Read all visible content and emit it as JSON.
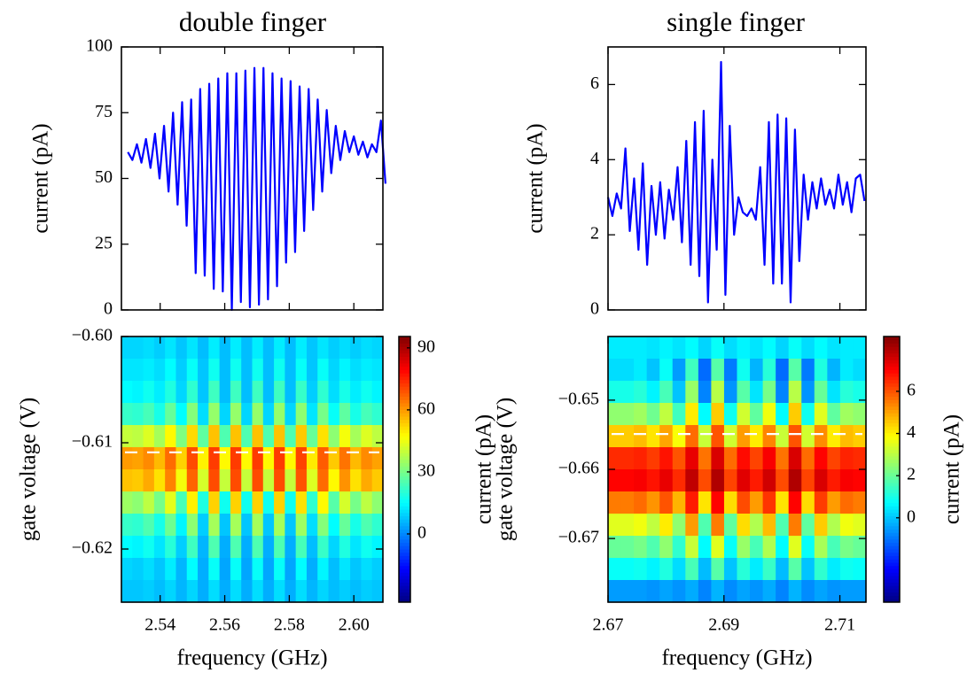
{
  "chart_data": [
    {
      "type": "line",
      "title": "double finger",
      "y_label": "current (pA)",
      "color": "#0000ff",
      "xlim": [
        2.528,
        2.609
      ],
      "ylim": [
        0,
        100
      ],
      "yticks": [
        0,
        25,
        50,
        75,
        100
      ],
      "x": [
        2.53,
        2.5314,
        2.5328,
        2.5342,
        2.5356,
        2.537,
        2.5384,
        2.5398,
        2.5412,
        2.5426,
        2.544,
        2.5454,
        2.5468,
        2.5482,
        2.5496,
        2.551,
        2.5524,
        2.5538,
        2.5552,
        2.5566,
        2.558,
        2.5594,
        2.5608,
        2.5622,
        2.5636,
        2.565,
        2.5664,
        2.5678,
        2.5692,
        2.5706,
        2.572,
        2.5734,
        2.5748,
        2.5762,
        2.5776,
        2.579,
        2.5804,
        2.5818,
        2.5832,
        2.5846,
        2.586,
        2.5874,
        2.5888,
        2.5902,
        2.5916,
        2.593,
        2.5944,
        2.5958,
        2.5972,
        2.5986,
        2.6,
        2.6014,
        2.6028,
        2.6042,
        2.6056,
        2.607,
        2.6084,
        2.6098
      ],
      "values": [
        60,
        57,
        63,
        56,
        65,
        54,
        67,
        50,
        70,
        45,
        75,
        40,
        79,
        32,
        80,
        14,
        84,
        13,
        86,
        8,
        88,
        7,
        90,
        0,
        90,
        3,
        91,
        1,
        92,
        2,
        92,
        4,
        90,
        9,
        88,
        18,
        87,
        22,
        85,
        30,
        84,
        38,
        80,
        45,
        76,
        52,
        70,
        57,
        68,
        60,
        66,
        59,
        64,
        58,
        63,
        60,
        72,
        48
      ]
    },
    {
      "type": "heatmap",
      "x_label": "frequency (GHz)",
      "y_label": "gate voltage (V)",
      "colormap": "jet",
      "xlim": [
        2.528,
        2.609
      ],
      "xticks": [
        2.54,
        2.56,
        2.58,
        {
          "value": 2.6,
          "label": "2.60"
        }
      ],
      "ylim": [
        -0.625,
        -0.6
      ],
      "yticks": [
        {
          "value": -0.6,
          "label": "−0.60"
        },
        {
          "value": -0.61,
          "label": "−0.61"
        },
        {
          "value": -0.62,
          "label": "−0.62"
        }
      ],
      "colorbar": {
        "label": "current (pA)",
        "lim": [
          -33,
          95.5
        ],
        "ticks": [
          0,
          30,
          60,
          90
        ]
      },
      "hline": -0.6109,
      "hline_color": "#ffffff",
      "z": [
        [
          10,
          10,
          11,
          9,
          12,
          8,
          12,
          7,
          13,
          7,
          13,
          7,
          13,
          7,
          13,
          7,
          13,
          8,
          12,
          9,
          11,
          9,
          11,
          10
        ],
        [
          12,
          12,
          13,
          11,
          15,
          9,
          16,
          8,
          17,
          7,
          17,
          7,
          17,
          7,
          17,
          7,
          16,
          8,
          16,
          10,
          14,
          11,
          13,
          12
        ],
        [
          15,
          14,
          17,
          13,
          19,
          10,
          21,
          8,
          23,
          7,
          23,
          7,
          23,
          7,
          23,
          7,
          22,
          9,
          21,
          11,
          18,
          13,
          17,
          14
        ],
        [
          22,
          21,
          24,
          18,
          28,
          15,
          32,
          11,
          34,
          10,
          34,
          10,
          34,
          10,
          34,
          10,
          33,
          12,
          30,
          16,
          27,
          18,
          24,
          21
        ],
        [
          40,
          39,
          43,
          36,
          48,
          31,
          52,
          27,
          55,
          25,
          55,
          25,
          55,
          25,
          55,
          25,
          54,
          28,
          51,
          33,
          46,
          36,
          43,
          39
        ],
        [
          60,
          59,
          62,
          56,
          66,
          53,
          70,
          49,
          72,
          48,
          72,
          48,
          72,
          48,
          72,
          48,
          71,
          50,
          68,
          54,
          65,
          56,
          62,
          59
        ],
        [
          55,
          54,
          58,
          51,
          63,
          46,
          67,
          42,
          70,
          40,
          70,
          40,
          70,
          40,
          70,
          40,
          69,
          43,
          66,
          48,
          61,
          51,
          58,
          54
        ],
        [
          35,
          33,
          39,
          30,
          44,
          24,
          49,
          19,
          53,
          17,
          53,
          17,
          53,
          17,
          53,
          17,
          51,
          21,
          48,
          26,
          42,
          30,
          39,
          33
        ],
        [
          22,
          21,
          25,
          18,
          29,
          14,
          33,
          9,
          36,
          8,
          36,
          8,
          36,
          8,
          36,
          8,
          35,
          11,
          32,
          15,
          28,
          18,
          25,
          21
        ],
        [
          15,
          14,
          17,
          12,
          20,
          9,
          23,
          6,
          25,
          5,
          25,
          5,
          25,
          5,
          25,
          5,
          24,
          7,
          22,
          10,
          19,
          12,
          17,
          14
        ],
        [
          10,
          9,
          11,
          8,
          13,
          6,
          15,
          5,
          16,
          4,
          16,
          4,
          16,
          4,
          16,
          4,
          15,
          5,
          14,
          7,
          12,
          8,
          11,
          9
        ],
        [
          8,
          8,
          9,
          7,
          10,
          6,
          10,
          5,
          11,
          5,
          11,
          5,
          11,
          5,
          11,
          5,
          11,
          6,
          10,
          7,
          9,
          7,
          9,
          8
        ]
      ]
    },
    {
      "type": "line",
      "title": "single finger",
      "y_label": "current (pA)",
      "color": "#0000ff",
      "xlim": [
        2.67,
        2.7145
      ],
      "ylim": [
        0,
        7
      ],
      "yticks": [
        0,
        2,
        4,
        6
      ],
      "x": [
        2.67,
        2.67075,
        2.6715,
        2.67225,
        2.673,
        2.67375,
        2.6745,
        2.67525,
        2.676,
        2.67675,
        2.6775,
        2.67825,
        2.679,
        2.67975,
        2.6805,
        2.68125,
        2.682,
        2.68275,
        2.6835,
        2.68425,
        2.685,
        2.68575,
        2.6865,
        2.68725,
        2.688,
        2.68875,
        2.6895,
        2.69025,
        2.691,
        2.69175,
        2.6925,
        2.69325,
        2.694,
        2.69475,
        2.6955,
        2.69625,
        2.697,
        2.69775,
        2.6985,
        2.69925,
        2.7,
        2.70075,
        2.7015,
        2.70225,
        2.703,
        2.70375,
        2.7045,
        2.70525,
        2.706,
        2.70675,
        2.7075,
        2.70825,
        2.709,
        2.70975,
        2.7105,
        2.71125,
        2.712,
        2.71275,
        2.7135,
        2.71425
      ],
      "values": [
        3.0,
        2.5,
        3.1,
        2.7,
        4.3,
        2.1,
        3.5,
        1.6,
        3.9,
        1.2,
        3.3,
        2.0,
        3.4,
        1.9,
        3.2,
        2.4,
        3.8,
        1.8,
        4.5,
        1.2,
        5.0,
        0.9,
        5.3,
        0.2,
        4.0,
        1.6,
        6.6,
        0.4,
        4.9,
        2.0,
        3.0,
        2.6,
        2.5,
        2.7,
        2.4,
        3.8,
        1.2,
        5.0,
        0.7,
        5.2,
        0.7,
        5.1,
        0.2,
        4.8,
        1.3,
        3.6,
        2.4,
        3.4,
        2.7,
        3.5,
        2.8,
        3.2,
        2.7,
        3.6,
        2.8,
        3.4,
        2.6,
        3.5,
        3.6,
        2.9
      ]
    },
    {
      "type": "heatmap",
      "x_label": "frequency (GHz)",
      "y_label": "gate voltage (V)",
      "colormap": "jet",
      "xlim": [
        2.67,
        2.7145
      ],
      "xticks": [
        2.67,
        2.69,
        2.71
      ],
      "ylim": [
        -0.6792,
        -0.6408
      ],
      "yticks": [
        {
          "value": -0.65,
          "label": "−0.65"
        },
        {
          "value": -0.66,
          "label": "−0.66"
        },
        {
          "value": -0.67,
          "label": "−0.67"
        }
      ],
      "colorbar": {
        "label": "current (pA)",
        "lim": [
          -4,
          8.6
        ],
        "ticks": [
          0,
          2,
          4,
          6
        ]
      },
      "hline": -0.6549,
      "hline_color": "#ffffff",
      "z": [
        [
          0.5,
          0.5,
          0.5,
          0.4,
          0.6,
          0.4,
          0.7,
          0.2,
          0.8,
          0.3,
          0.6,
          0.4,
          0.7,
          0.2,
          0.8,
          0.3,
          0.7,
          0.4,
          0.5,
          0.5
        ],
        [
          0.3,
          0.3,
          0.5,
          0.0,
          0.8,
          -0.5,
          1.5,
          -1.1,
          1.8,
          -0.9,
          0.9,
          -0.2,
          1.2,
          -1.1,
          1.8,
          -0.9,
          1.1,
          -0.2,
          0.5,
          0.3
        ],
        [
          1.0,
          1.0,
          1.2,
          0.6,
          1.6,
          0.0,
          2.6,
          -0.8,
          3.0,
          -0.6,
          1.8,
          0.4,
          2.2,
          -0.8,
          3.0,
          -0.6,
          2.0,
          0.4,
          1.2,
          1.0
        ],
        [
          2.5,
          2.5,
          2.7,
          2.1,
          3.1,
          1.5,
          4.1,
          0.7,
          4.5,
          0.9,
          3.3,
          1.9,
          3.7,
          0.7,
          4.5,
          0.9,
          3.5,
          1.9,
          2.7,
          2.5
        ],
        [
          4.5,
          4.5,
          4.7,
          4.2,
          5.0,
          3.8,
          5.7,
          3.2,
          6.0,
          3.3,
          5.1,
          4.1,
          5.4,
          3.2,
          6.0,
          3.3,
          5.3,
          4.1,
          4.7,
          4.5
        ],
        [
          6.5,
          6.5,
          6.6,
          6.3,
          6.8,
          6.0,
          7.3,
          5.6,
          7.5,
          5.7,
          6.9,
          6.2,
          7.1,
          5.6,
          7.5,
          5.7,
          7.0,
          6.2,
          6.6,
          6.5
        ],
        [
          7.0,
          7.0,
          7.1,
          6.8,
          7.3,
          6.5,
          7.8,
          6.1,
          8.0,
          6.2,
          7.4,
          6.7,
          7.6,
          6.1,
          8.0,
          6.2,
          7.5,
          6.7,
          7.1,
          7.0
        ],
        [
          5.5,
          5.5,
          5.7,
          5.2,
          6.0,
          4.8,
          6.7,
          4.2,
          7.0,
          4.3,
          6.1,
          5.1,
          6.4,
          4.2,
          7.0,
          4.3,
          6.3,
          5.1,
          5.7,
          5.5
        ],
        [
          3.5,
          3.5,
          3.7,
          3.1,
          4.1,
          2.5,
          5.1,
          1.7,
          5.5,
          1.9,
          4.3,
          2.9,
          4.7,
          1.7,
          5.5,
          1.9,
          4.5,
          2.9,
          3.7,
          3.5
        ],
        [
          2.0,
          2.0,
          2.2,
          1.7,
          2.5,
          1.3,
          3.2,
          0.7,
          3.5,
          0.8,
          2.6,
          1.6,
          2.9,
          0.7,
          3.5,
          0.8,
          2.8,
          1.6,
          2.2,
          2.0
        ],
        [
          0.8,
          0.8,
          0.9,
          0.6,
          1.1,
          0.3,
          1.6,
          -0.1,
          1.8,
          0.0,
          1.2,
          0.5,
          1.4,
          -0.1,
          1.8,
          0.0,
          1.3,
          0.5,
          0.9,
          0.8
        ],
        [
          -0.5,
          -0.5,
          -0.5,
          -0.6,
          -0.4,
          -0.6,
          -0.3,
          -0.8,
          -0.2,
          -0.7,
          -0.4,
          -0.6,
          -0.3,
          -0.8,
          -0.2,
          -0.7,
          -0.4,
          -0.6,
          -0.5,
          -0.5
        ]
      ]
    }
  ]
}
